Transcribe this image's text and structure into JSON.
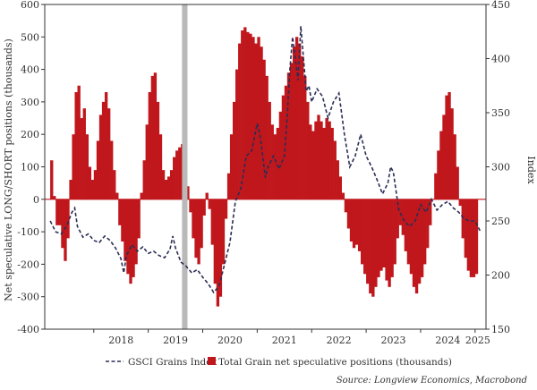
{
  "chart_data": {
    "type": "bar",
    "x_categories": [
      "2018",
      "2019",
      "2020",
      "2021",
      "2022",
      "2023",
      "2024",
      "2025"
    ],
    "left_axis": {
      "label": "Net speculative LONG/SHORT positions (thousands)",
      "ylim": [
        -400,
        600
      ],
      "ticks": [
        "-400",
        "-300",
        "-200",
        "-100",
        "0",
        "100",
        "200",
        "300",
        "400",
        "500",
        "600"
      ]
    },
    "right_axis": {
      "label": "Index",
      "ylim": [
        150,
        450
      ],
      "ticks": [
        "150",
        "200",
        "250",
        "300",
        "350",
        "400",
        "450"
      ]
    },
    "shaded_period": {
      "start": 2019.62,
      "end": 2019.72
    },
    "series": [
      {
        "name": "Total Grain net speculative positions (thousands)",
        "type": "bar",
        "axis": "left",
        "color": "#c0171c",
        "points": [
          [
            2017.2,
            120
          ],
          [
            2017.25,
            10
          ],
          [
            2017.3,
            -80
          ],
          [
            2017.4,
            -150
          ],
          [
            2017.45,
            -190
          ],
          [
            2017.5,
            -120
          ],
          [
            2017.55,
            60
          ],
          [
            2017.6,
            200
          ],
          [
            2017.65,
            330
          ],
          [
            2017.7,
            350
          ],
          [
            2017.75,
            250
          ],
          [
            2017.8,
            280
          ],
          [
            2017.85,
            200
          ],
          [
            2017.9,
            100
          ],
          [
            2017.95,
            60
          ],
          [
            2018.0,
            90
          ],
          [
            2018.05,
            180
          ],
          [
            2018.1,
            260
          ],
          [
            2018.15,
            300
          ],
          [
            2018.2,
            330
          ],
          [
            2018.25,
            280
          ],
          [
            2018.3,
            180
          ],
          [
            2018.35,
            90
          ],
          [
            2018.4,
            20
          ],
          [
            2018.45,
            -80
          ],
          [
            2018.5,
            -130
          ],
          [
            2018.55,
            -190
          ],
          [
            2018.6,
            -230
          ],
          [
            2018.65,
            -260
          ],
          [
            2018.7,
            -240
          ],
          [
            2018.75,
            -200
          ],
          [
            2018.8,
            -120
          ],
          [
            2018.85,
            20
          ],
          [
            2018.9,
            120
          ],
          [
            2018.95,
            230
          ],
          [
            2019.0,
            330
          ],
          [
            2019.05,
            380
          ],
          [
            2019.1,
            390
          ],
          [
            2019.15,
            300
          ],
          [
            2019.2,
            200
          ],
          [
            2019.25,
            90
          ],
          [
            2019.3,
            60
          ],
          [
            2019.35,
            70
          ],
          [
            2019.4,
            90
          ],
          [
            2019.45,
            130
          ],
          [
            2019.5,
            150
          ],
          [
            2019.55,
            160
          ],
          [
            2019.6,
            170
          ],
          [
            2019.65,
            120
          ],
          [
            2019.7,
            40
          ],
          [
            2019.75,
            -40
          ],
          [
            2019.8,
            -120
          ],
          [
            2019.85,
            -180
          ],
          [
            2019.9,
            -200
          ],
          [
            2019.95,
            -150
          ],
          [
            2020.0,
            -50
          ],
          [
            2020.05,
            20
          ],
          [
            2020.1,
            -30
          ],
          [
            2020.15,
            -140
          ],
          [
            2020.2,
            -260
          ],
          [
            2020.25,
            -330
          ],
          [
            2020.3,
            -300
          ],
          [
            2020.35,
            -200
          ],
          [
            2020.4,
            -60
          ],
          [
            2020.45,
            80
          ],
          [
            2020.5,
            200
          ],
          [
            2020.55,
            300
          ],
          [
            2020.6,
            400
          ],
          [
            2020.65,
            480
          ],
          [
            2020.7,
            520
          ],
          [
            2020.75,
            530
          ],
          [
            2020.8,
            515
          ],
          [
            2020.85,
            510
          ],
          [
            2020.9,
            500
          ],
          [
            2020.95,
            480
          ],
          [
            2021.0,
            500
          ],
          [
            2021.05,
            470
          ],
          [
            2021.1,
            430
          ],
          [
            2021.15,
            380
          ],
          [
            2021.2,
            300
          ],
          [
            2021.25,
            230
          ],
          [
            2021.3,
            200
          ],
          [
            2021.35,
            220
          ],
          [
            2021.4,
            270
          ],
          [
            2021.45,
            320
          ],
          [
            2021.5,
            350
          ],
          [
            2021.55,
            390
          ],
          [
            2021.6,
            420
          ],
          [
            2021.65,
            470
          ],
          [
            2021.7,
            500
          ],
          [
            2021.75,
            480
          ],
          [
            2021.8,
            440
          ],
          [
            2021.85,
            380
          ],
          [
            2021.9,
            300
          ],
          [
            2021.95,
            230
          ],
          [
            2022.0,
            210
          ],
          [
            2022.05,
            240
          ],
          [
            2022.1,
            260
          ],
          [
            2022.15,
            240
          ],
          [
            2022.2,
            220
          ],
          [
            2022.25,
            250
          ],
          [
            2022.3,
            240
          ],
          [
            2022.35,
            220
          ],
          [
            2022.4,
            180
          ],
          [
            2022.45,
            120
          ],
          [
            2022.5,
            70
          ],
          [
            2022.55,
            20
          ],
          [
            2022.6,
            -40
          ],
          [
            2022.65,
            -90
          ],
          [
            2022.7,
            -130
          ],
          [
            2022.75,
            -150
          ],
          [
            2022.8,
            -140
          ],
          [
            2022.85,
            -160
          ],
          [
            2022.9,
            -200
          ],
          [
            2022.95,
            -230
          ],
          [
            2023.0,
            -260
          ],
          [
            2023.05,
            -290
          ],
          [
            2023.1,
            -300
          ],
          [
            2023.15,
            -270
          ],
          [
            2023.2,
            -240
          ],
          [
            2023.25,
            -220
          ],
          [
            2023.3,
            -210
          ],
          [
            2023.35,
            -250
          ],
          [
            2023.4,
            -270
          ],
          [
            2023.45,
            -240
          ],
          [
            2023.5,
            -200
          ],
          [
            2023.55,
            -120
          ],
          [
            2023.6,
            -80
          ],
          [
            2023.65,
            -110
          ],
          [
            2023.7,
            -160
          ],
          [
            2023.75,
            -200
          ],
          [
            2023.8,
            -230
          ],
          [
            2023.85,
            -270
          ],
          [
            2023.9,
            -290
          ],
          [
            2023.95,
            -260
          ],
          [
            2024.0,
            -240
          ],
          [
            2024.05,
            -200
          ],
          [
            2024.1,
            -150
          ],
          [
            2024.15,
            -80
          ],
          [
            2024.2,
            0
          ],
          [
            2024.25,
            80
          ],
          [
            2024.3,
            150
          ],
          [
            2024.35,
            210
          ],
          [
            2024.4,
            260
          ],
          [
            2024.45,
            320
          ],
          [
            2024.5,
            330
          ],
          [
            2024.55,
            280
          ],
          [
            2024.6,
            200
          ],
          [
            2024.65,
            100
          ],
          [
            2024.7,
            -20
          ],
          [
            2024.75,
            -120
          ],
          [
            2024.8,
            -180
          ],
          [
            2024.85,
            -220
          ],
          [
            2024.9,
            -240
          ],
          [
            2024.95,
            -240
          ],
          [
            2025.0,
            -230
          ]
        ]
      },
      {
        "name": "GSCI Grains Index",
        "type": "line",
        "style": "dashed",
        "axis": "right",
        "color": "#2b2d55",
        "points": [
          [
            2017.2,
            250
          ],
          [
            2017.3,
            240
          ],
          [
            2017.4,
            238
          ],
          [
            2017.5,
            245
          ],
          [
            2017.6,
            258
          ],
          [
            2017.65,
            262
          ],
          [
            2017.7,
            245
          ],
          [
            2017.8,
            235
          ],
          [
            2017.9,
            238
          ],
          [
            2018.0,
            232
          ],
          [
            2018.1,
            230
          ],
          [
            2018.2,
            236
          ],
          [
            2018.3,
            232
          ],
          [
            2018.4,
            225
          ],
          [
            2018.5,
            215
          ],
          [
            2018.55,
            202
          ],
          [
            2018.6,
            218
          ],
          [
            2018.7,
            228
          ],
          [
            2018.8,
            222
          ],
          [
            2018.9,
            226
          ],
          [
            2019.0,
            220
          ],
          [
            2019.1,
            222
          ],
          [
            2019.2,
            218
          ],
          [
            2019.3,
            216
          ],
          [
            2019.4,
            224
          ],
          [
            2019.45,
            236
          ],
          [
            2019.5,
            225
          ],
          [
            2019.6,
            212
          ],
          [
            2019.7,
            208
          ],
          [
            2019.8,
            202
          ],
          [
            2019.9,
            205
          ],
          [
            2020.0,
            198
          ],
          [
            2020.1,
            192
          ],
          [
            2020.2,
            184
          ],
          [
            2020.3,
            190
          ],
          [
            2020.4,
            210
          ],
          [
            2020.5,
            230
          ],
          [
            2020.6,
            268
          ],
          [
            2020.7,
            280
          ],
          [
            2020.8,
            310
          ],
          [
            2020.9,
            315
          ],
          [
            2021.0,
            340
          ],
          [
            2021.05,
            330
          ],
          [
            2021.1,
            310
          ],
          [
            2021.15,
            290
          ],
          [
            2021.2,
            300
          ],
          [
            2021.3,
            310
          ],
          [
            2021.4,
            298
          ],
          [
            2021.5,
            310
          ],
          [
            2021.55,
            345
          ],
          [
            2021.6,
            390
          ],
          [
            2021.65,
            420
          ],
          [
            2021.7,
            400
          ],
          [
            2021.75,
            380
          ],
          [
            2021.8,
            430
          ],
          [
            2021.85,
            400
          ],
          [
            2021.9,
            370
          ],
          [
            2021.95,
            375
          ],
          [
            2022.0,
            360
          ],
          [
            2022.1,
            372
          ],
          [
            2022.2,
            365
          ],
          [
            2022.3,
            345
          ],
          [
            2022.4,
            360
          ],
          [
            2022.5,
            368
          ],
          [
            2022.6,
            330
          ],
          [
            2022.7,
            300
          ],
          [
            2022.8,
            310
          ],
          [
            2022.9,
            330
          ],
          [
            2023.0,
            310
          ],
          [
            2023.1,
            300
          ],
          [
            2023.2,
            288
          ],
          [
            2023.3,
            275
          ],
          [
            2023.4,
            285
          ],
          [
            2023.45,
            300
          ],
          [
            2023.5,
            295
          ],
          [
            2023.6,
            260
          ],
          [
            2023.7,
            250
          ],
          [
            2023.8,
            245
          ],
          [
            2023.9,
            250
          ],
          [
            2024.0,
            265
          ],
          [
            2024.1,
            258
          ],
          [
            2024.2,
            270
          ],
          [
            2024.3,
            260
          ],
          [
            2024.4,
            265
          ],
          [
            2024.5,
            268
          ],
          [
            2024.6,
            262
          ],
          [
            2024.7,
            258
          ],
          [
            2024.8,
            252
          ],
          [
            2024.9,
            250
          ],
          [
            2025.0,
            250
          ],
          [
            2025.1,
            240
          ]
        ]
      }
    ],
    "legend": {
      "placement": "bottom"
    },
    "source": "Source: Longview Economics, Macrobond"
  }
}
